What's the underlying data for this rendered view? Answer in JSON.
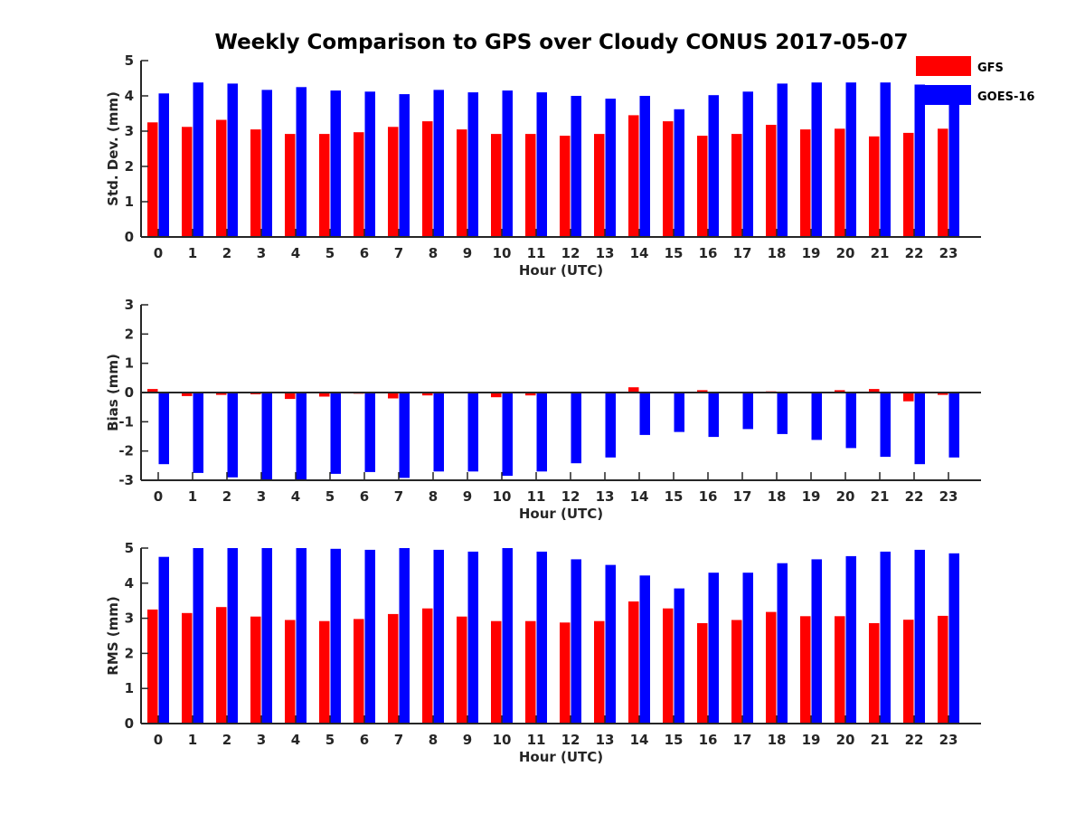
{
  "title": "Weekly Comparison to GPS over Cloudy CONUS 2017-05-07",
  "colors": {
    "GFS": "#ff0000",
    "GOES-16": "#0000ff",
    "axis": "#262626"
  },
  "legend": {
    "placement": "top-right",
    "entries": [
      "GFS",
      "GOES-16"
    ]
  },
  "chart_data": [
    {
      "type": "bar",
      "xlabel": "Hour (UTC)",
      "ylabel": "Std. Dev. (mm)",
      "ylim": [
        0,
        5
      ],
      "yticks": [
        "0",
        "1",
        "2",
        "3",
        "4",
        "5"
      ],
      "categories": [
        "0",
        "1",
        "2",
        "3",
        "4",
        "5",
        "6",
        "7",
        "8",
        "9",
        "10",
        "11",
        "12",
        "13",
        "14",
        "15",
        "16",
        "17",
        "18",
        "19",
        "20",
        "21",
        "22",
        "23"
      ],
      "series": [
        {
          "name": "GFS",
          "values": [
            3.25,
            3.12,
            3.32,
            3.05,
            2.92,
            2.92,
            2.97,
            3.12,
            3.28,
            3.05,
            2.92,
            2.92,
            2.87,
            2.92,
            3.45,
            3.28,
            2.87,
            2.92,
            3.18,
            3.05,
            3.07,
            2.85,
            2.95,
            3.07
          ]
        },
        {
          "name": "GOES-16",
          "values": [
            4.07,
            4.38,
            4.35,
            4.17,
            4.25,
            4.15,
            4.12,
            4.05,
            4.17,
            4.1,
            4.15,
            4.1,
            4.0,
            3.92,
            4.0,
            3.62,
            4.02,
            4.12,
            4.35,
            4.38,
            4.38,
            4.38,
            4.32,
            3.95
          ]
        }
      ]
    },
    {
      "type": "bar",
      "xlabel": "Hour (UTC)",
      "ylabel": "Bias (mm)",
      "ylim": [
        -3,
        3
      ],
      "yticks": [
        "-3",
        "-2",
        "-1",
        "0",
        "1",
        "2",
        "3"
      ],
      "categories": [
        "0",
        "1",
        "2",
        "3",
        "4",
        "5",
        "6",
        "7",
        "8",
        "9",
        "10",
        "11",
        "12",
        "13",
        "14",
        "15",
        "16",
        "17",
        "18",
        "19",
        "20",
        "21",
        "22",
        "23"
      ],
      "series": [
        {
          "name": "GFS",
          "values": [
            0.12,
            -0.12,
            -0.08,
            -0.06,
            -0.22,
            -0.14,
            -0.04,
            -0.2,
            -0.1,
            -0.02,
            -0.16,
            -0.1,
            -0.02,
            -0.02,
            0.18,
            0.02,
            0.08,
            -0.02,
            0.04,
            0.02,
            0.08,
            0.12,
            -0.3,
            -0.08
          ]
        },
        {
          "name": "GOES-16",
          "values": [
            -2.45,
            -2.75,
            -2.9,
            -2.97,
            -2.97,
            -2.78,
            -2.72,
            -2.92,
            -2.7,
            -2.7,
            -2.85,
            -2.7,
            -2.42,
            -2.22,
            -1.45,
            -1.35,
            -1.52,
            -1.25,
            -1.42,
            -1.62,
            -1.9,
            -2.2,
            -2.45,
            -2.22
          ]
        }
      ]
    },
    {
      "type": "bar",
      "xlabel": "Hour (UTC)",
      "ylabel": "RMS (mm)",
      "ylim": [
        0,
        5
      ],
      "yticks": [
        "0",
        "1",
        "2",
        "3",
        "4",
        "5"
      ],
      "categories": [
        "0",
        "1",
        "2",
        "3",
        "4",
        "5",
        "6",
        "7",
        "8",
        "9",
        "10",
        "11",
        "12",
        "13",
        "14",
        "15",
        "16",
        "17",
        "18",
        "19",
        "20",
        "21",
        "22",
        "23"
      ],
      "series": [
        {
          "name": "GFS",
          "values": [
            3.25,
            3.15,
            3.32,
            3.05,
            2.95,
            2.92,
            2.98,
            3.12,
            3.28,
            3.05,
            2.92,
            2.92,
            2.88,
            2.92,
            3.48,
            3.28,
            2.86,
            2.95,
            3.18,
            3.06,
            3.06,
            2.86,
            2.96,
            3.07
          ]
        },
        {
          "name": "GOES-16",
          "values": [
            4.75,
            5.0,
            5.0,
            5.0,
            5.0,
            4.98,
            4.95,
            5.0,
            4.95,
            4.9,
            5.0,
            4.9,
            4.68,
            4.52,
            4.22,
            3.85,
            4.3,
            4.3,
            4.57,
            4.68,
            4.77,
            4.9,
            4.95,
            4.85
          ]
        }
      ]
    }
  ]
}
